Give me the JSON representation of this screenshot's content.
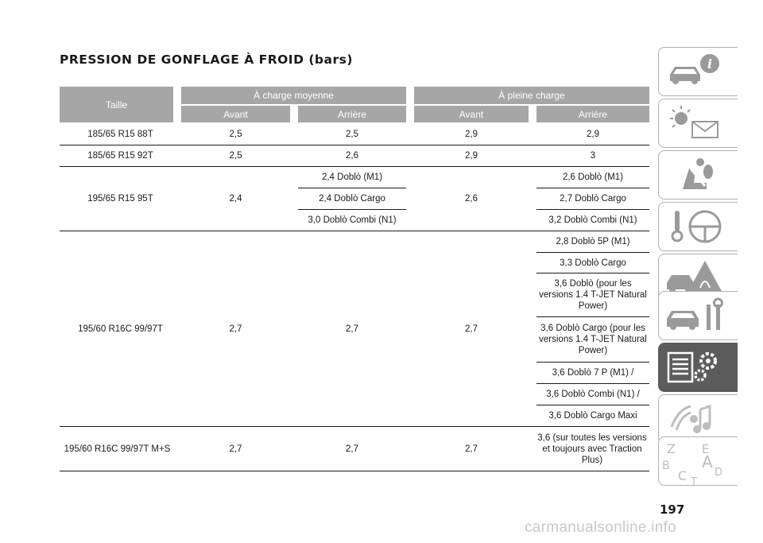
{
  "title": "PRESSION DE GONFLAGE À FROID (bars)",
  "header": {
    "taille": "Taille",
    "group_moyenne": "À charge moyenne",
    "group_pleine": "À pleine charge",
    "avant": "Avant",
    "arriere": "Arrière"
  },
  "rows": [
    {
      "taille": "185/65 R15 88T",
      "m_avant": "2,5",
      "m_arriere": "2,5",
      "p_avant": "2,9",
      "p_arriere": "2,9"
    },
    {
      "taille": "185/65 R15 92T",
      "m_avant": "2,5",
      "m_arriere": "2,6",
      "p_avant": "2,9",
      "p_arriere": "3"
    },
    {
      "taille": "195/65 R15 95T",
      "m_avant": "2,4",
      "m_arriere": [
        "2,4 Doblò (M1)",
        "2,4 Doblò Cargo",
        "3,0 Doblò Combi (N1)"
      ],
      "p_avant": "2,6",
      "p_arriere": [
        "2,6 Doblò (M1)",
        "2,7 Doblò Cargo",
        "3,2 Doblò Combi (N1)"
      ]
    },
    {
      "taille": "195/60 R16C 99/97T",
      "m_avant": "2,7",
      "m_arriere": "2,7",
      "p_avant": "2,7",
      "p_arriere": [
        "2,8 Doblò 5P (M1)",
        "3,3 Doblò Cargo",
        "3,6 Doblò (pour les versions 1.4 T-JET Natural Power)",
        "3,6 Doblò Cargo (pour les versions 1.4 T-JET Natural Power)",
        "3,6 Doblò 7 P (M1) /",
        "3,6 Doblò Combi (N1) /",
        "3,6 Doblò Cargo Maxi"
      ]
    },
    {
      "taille": "195/60 R16C 99/97T M+S",
      "m_avant": "2,7",
      "m_arriere": "2,7",
      "p_avant": "2,7",
      "p_arriere": "3,6 (sur toutes les versions et toujours avec Traction Plus)"
    }
  ],
  "sidebar": {
    "tabs": [
      {
        "icon": "car-info-icon"
      },
      {
        "icon": "warning-lights-message-icon"
      },
      {
        "icon": "airbag-seat-icon"
      },
      {
        "icon": "key-steering-wheel-icon"
      },
      {
        "icon": "car-accident-warning-icon"
      },
      {
        "icon": "car-service-tools-icon"
      },
      {
        "icon": "technical-data-gear-icon",
        "active": true
      },
      {
        "icon": "multimedia-music-icon"
      },
      {
        "icon": "alphabetical-index-icon",
        "letters": [
          "Z",
          "E",
          "B",
          "A",
          "C",
          "D",
          "T"
        ]
      }
    ]
  },
  "page_number": "197",
  "watermark": "carmanualsonline.info",
  "colors": {
    "header_bg": "#a6a6a6",
    "active_tab": "#5c5c5c",
    "text": "#1a1a1a"
  }
}
